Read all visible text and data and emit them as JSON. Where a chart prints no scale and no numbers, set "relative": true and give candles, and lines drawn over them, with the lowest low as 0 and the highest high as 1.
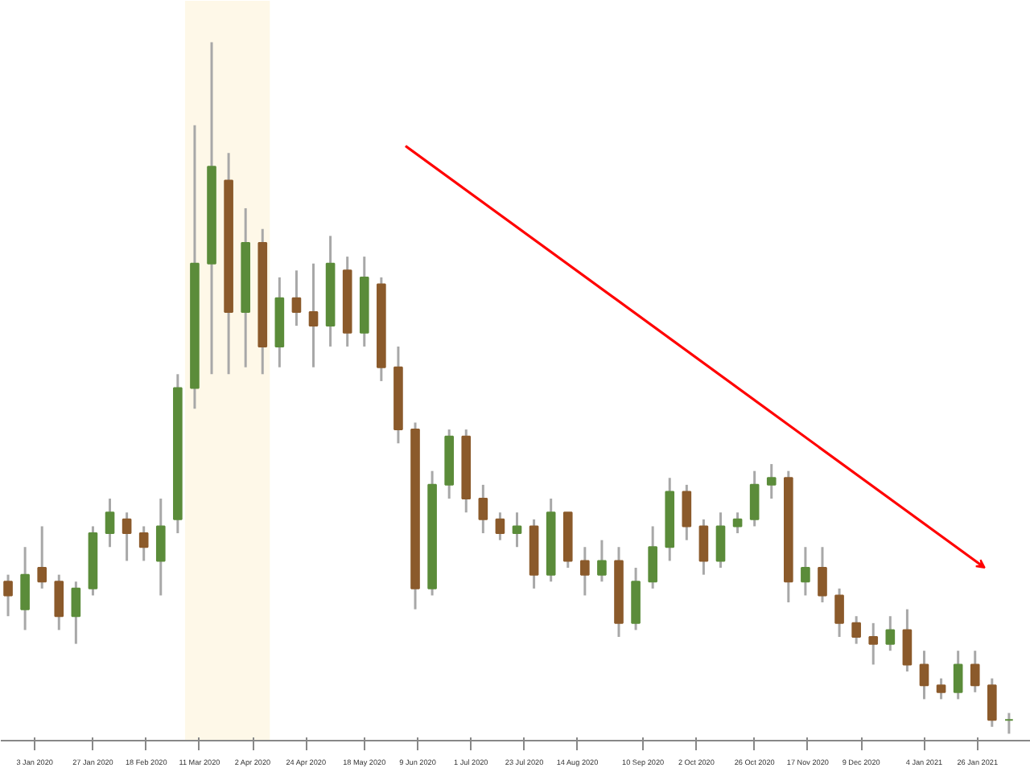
{
  "chart_data": {
    "type": "candlestick",
    "relative": true,
    "grid": false,
    "tick_labels": "x",
    "xlim": [
      "2019-12-20",
      "2021-02-17"
    ],
    "xticks": [
      {
        "value": "2020-01-03",
        "label": "3 Jan 2020"
      },
      {
        "value": "2020-01-27",
        "label": "27 Jan 2020"
      },
      {
        "value": "2020-02-18",
        "label": "18 Feb 2020"
      },
      {
        "value": "2020-03-11",
        "label": "11 Mar 2020"
      },
      {
        "value": "2020-04-02",
        "label": "2 Apr 2020"
      },
      {
        "value": "2020-04-24",
        "label": "24 Apr 2020"
      },
      {
        "value": "2020-05-18",
        "label": "18 May 2020"
      },
      {
        "value": "2020-06-09",
        "label": "9 Jun 2020"
      },
      {
        "value": "2020-07-01",
        "label": "1 Jul 2020"
      },
      {
        "value": "2020-07-23",
        "label": "23 Jul 2020"
      },
      {
        "value": "2020-08-14",
        "label": "14 Aug 2020"
      },
      {
        "value": "2020-09-10",
        "label": "10 Sep 2020"
      },
      {
        "value": "2020-10-02",
        "label": "2 Oct 2020"
      },
      {
        "value": "2020-10-26",
        "label": "26 Oct 2020"
      },
      {
        "value": "2020-11-17",
        "label": "17 Nov 2020"
      },
      {
        "value": "2020-12-09",
        "label": "9 Dec 2020"
      },
      {
        "value": "2021-01-04",
        "label": "4 Jan 2021"
      },
      {
        "value": "2021-01-26",
        "label": "26 Jan 2021"
      }
    ],
    "x": [
      "2019-12-23",
      "2019-12-30",
      "2020-01-06",
      "2020-01-13",
      "2020-01-20",
      "2020-01-27",
      "2020-02-03",
      "2020-02-10",
      "2020-02-17",
      "2020-02-24",
      "2020-03-02",
      "2020-03-09",
      "2020-03-16",
      "2020-03-23",
      "2020-03-30",
      "2020-04-06",
      "2020-04-13",
      "2020-04-20",
      "2020-04-27",
      "2020-05-04",
      "2020-05-11",
      "2020-05-18",
      "2020-05-25",
      "2020-06-01",
      "2020-06-08",
      "2020-06-15",
      "2020-06-22",
      "2020-06-29",
      "2020-07-06",
      "2020-07-13",
      "2020-07-20",
      "2020-07-27",
      "2020-08-03",
      "2020-08-10",
      "2020-08-17",
      "2020-08-24",
      "2020-08-31",
      "2020-09-07",
      "2020-09-14",
      "2020-09-21",
      "2020-09-28",
      "2020-10-05",
      "2020-10-12",
      "2020-10-19",
      "2020-10-26",
      "2020-11-02",
      "2020-11-09",
      "2020-11-16",
      "2020-11-23",
      "2020-11-30",
      "2020-12-07",
      "2020-12-14",
      "2020-12-21",
      "2020-12-28",
      "2021-01-04",
      "2021-01-11",
      "2021-01-18",
      "2021-01-25",
      "2021-02-01",
      "2021-02-08"
    ],
    "ohlc": [
      [
        0.22,
        0.23,
        0.17,
        0.2
      ],
      [
        0.18,
        0.27,
        0.15,
        0.23
      ],
      [
        0.24,
        0.3,
        0.21,
        0.22
      ],
      [
        0.22,
        0.23,
        0.15,
        0.17
      ],
      [
        0.17,
        0.22,
        0.13,
        0.21
      ],
      [
        0.21,
        0.3,
        0.2,
        0.29
      ],
      [
        0.29,
        0.34,
        0.27,
        0.32
      ],
      [
        0.31,
        0.32,
        0.25,
        0.29
      ],
      [
        0.29,
        0.3,
        0.25,
        0.27
      ],
      [
        0.25,
        0.34,
        0.2,
        0.3
      ],
      [
        0.31,
        0.52,
        0.29,
        0.5
      ],
      [
        0.5,
        0.88,
        0.47,
        0.68
      ],
      [
        0.68,
        1.0,
        0.52,
        0.82
      ],
      [
        0.8,
        0.84,
        0.52,
        0.61
      ],
      [
        0.61,
        0.76,
        0.53,
        0.71
      ],
      [
        0.71,
        0.73,
        0.52,
        0.56
      ],
      [
        0.56,
        0.66,
        0.53,
        0.63
      ],
      [
        0.63,
        0.67,
        0.59,
        0.61
      ],
      [
        0.61,
        0.68,
        0.53,
        0.59
      ],
      [
        0.59,
        0.72,
        0.56,
        0.68
      ],
      [
        0.67,
        0.69,
        0.56,
        0.58
      ],
      [
        0.58,
        0.69,
        0.56,
        0.66
      ],
      [
        0.65,
        0.66,
        0.51,
        0.53
      ],
      [
        0.53,
        0.56,
        0.42,
        0.44
      ],
      [
        0.44,
        0.45,
        0.18,
        0.21
      ],
      [
        0.21,
        0.38,
        0.2,
        0.36
      ],
      [
        0.36,
        0.44,
        0.34,
        0.43
      ],
      [
        0.43,
        0.44,
        0.32,
        0.34
      ],
      [
        0.34,
        0.36,
        0.29,
        0.31
      ],
      [
        0.31,
        0.32,
        0.28,
        0.29
      ],
      [
        0.29,
        0.32,
        0.27,
        0.3
      ],
      [
        0.3,
        0.31,
        0.21,
        0.23
      ],
      [
        0.23,
        0.34,
        0.22,
        0.32
      ],
      [
        0.32,
        0.32,
        0.24,
        0.25
      ],
      [
        0.25,
        0.27,
        0.2,
        0.23
      ],
      [
        0.23,
        0.28,
        0.22,
        0.25
      ],
      [
        0.25,
        0.27,
        0.14,
        0.16
      ],
      [
        0.16,
        0.24,
        0.15,
        0.22
      ],
      [
        0.22,
        0.3,
        0.21,
        0.27
      ],
      [
        0.27,
        0.37,
        0.25,
        0.35
      ],
      [
        0.35,
        0.36,
        0.28,
        0.3
      ],
      [
        0.3,
        0.31,
        0.23,
        0.25
      ],
      [
        0.25,
        0.32,
        0.24,
        0.3
      ],
      [
        0.3,
        0.32,
        0.29,
        0.31
      ],
      [
        0.31,
        0.38,
        0.3,
        0.36
      ],
      [
        0.36,
        0.39,
        0.34,
        0.37
      ],
      [
        0.37,
        0.38,
        0.19,
        0.22
      ],
      [
        0.22,
        0.27,
        0.2,
        0.24
      ],
      [
        0.24,
        0.27,
        0.19,
        0.2
      ],
      [
        0.2,
        0.21,
        0.14,
        0.16
      ],
      [
        0.16,
        0.17,
        0.13,
        0.14
      ],
      [
        0.14,
        0.16,
        0.1,
        0.13
      ],
      [
        0.13,
        0.17,
        0.12,
        0.15
      ],
      [
        0.15,
        0.18,
        0.09,
        0.1
      ],
      [
        0.1,
        0.12,
        0.05,
        0.07
      ],
      [
        0.07,
        0.08,
        0.05,
        0.06
      ],
      [
        0.06,
        0.12,
        0.05,
        0.1
      ],
      [
        0.1,
        0.12,
        0.06,
        0.07
      ],
      [
        0.07,
        0.08,
        0.01,
        0.02
      ],
      [
        0.02,
        0.03,
        0.0,
        0.02
      ]
    ],
    "series": [
      {
        "type": "line",
        "color": "#ff0000",
        "x": [
          "2020-06-04",
          "2021-01-29"
        ],
        "values": [
          0.85,
          0.24
        ]
      }
    ],
    "bands": [
      {
        "axis": "x",
        "from": "2020-03-05",
        "to": "2020-04-09",
        "color": "#fef8e8"
      }
    ]
  }
}
